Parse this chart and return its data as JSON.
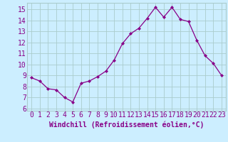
{
  "x": [
    0,
    1,
    2,
    3,
    4,
    5,
    6,
    7,
    8,
    9,
    10,
    11,
    12,
    13,
    14,
    15,
    16,
    17,
    18,
    19,
    20,
    21,
    22,
    23
  ],
  "y": [
    8.8,
    8.5,
    7.8,
    7.7,
    7.0,
    6.6,
    8.3,
    8.5,
    8.9,
    9.4,
    10.4,
    11.9,
    12.8,
    13.3,
    14.2,
    15.2,
    14.3,
    15.2,
    14.1,
    13.9,
    12.2,
    10.8,
    10.1,
    9.0
  ],
  "line_color": "#880088",
  "marker": "D",
  "marker_size": 2.0,
  "bg_color": "#cceeff",
  "grid_color": "#aacccc",
  "xlabel": "Windchill (Refroidissement éolien,°C)",
  "xlabel_fontsize": 7,
  "tick_label_fontsize": 7,
  "ylim": [
    5.8,
    15.6
  ],
  "xlim": [
    -0.5,
    23.5
  ],
  "yticks": [
    6,
    7,
    8,
    9,
    10,
    11,
    12,
    13,
    14,
    15
  ],
  "xticks": [
    0,
    1,
    2,
    3,
    4,
    5,
    6,
    7,
    8,
    9,
    10,
    11,
    12,
    13,
    14,
    15,
    16,
    17,
    18,
    19,
    20,
    21,
    22,
    23
  ]
}
